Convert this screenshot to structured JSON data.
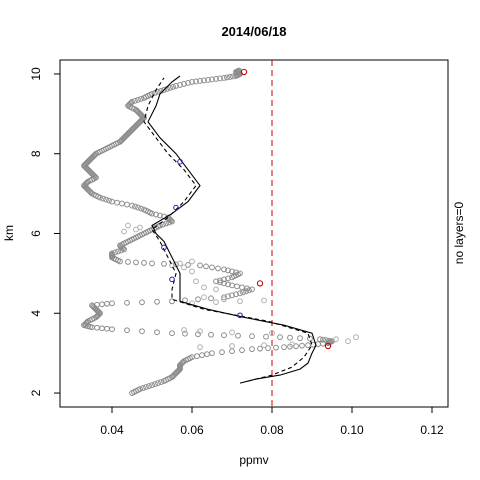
{
  "chart_data": {
    "type": "scatter",
    "title": "2014/06/18",
    "xlabel": "ppmv",
    "ylabel": "km",
    "right_label": "no layers=0",
    "xlim": [
      0.027,
      0.124
    ],
    "ylim": [
      1.65,
      10.35
    ],
    "x_ticks": [
      0.04,
      0.06,
      0.08,
      0.1,
      0.12
    ],
    "x_tick_labels": [
      "0.04",
      "0.06",
      "0.08",
      "0.10",
      "0.12"
    ],
    "y_ticks": [
      2,
      4,
      6,
      8,
      10
    ],
    "y_tick_labels": [
      "2",
      "4",
      "6",
      "8",
      "10"
    ],
    "grid": false,
    "reference_line": {
      "x": 0.08,
      "color": "#cc0000",
      "style": "dashed"
    },
    "colors": {
      "raw": "#8c8c8c",
      "smooth": "#000000",
      "blue_marker": "#2020c0",
      "red_marker": "#cc0000"
    },
    "series": [
      {
        "style": "gray-circles",
        "profile": [
          [
            2.0,
            0.045
          ],
          [
            2.1,
            0.047
          ],
          [
            2.2,
            0.05
          ],
          [
            2.3,
            0.053
          ],
          [
            2.4,
            0.055
          ],
          [
            2.5,
            0.056
          ],
          [
            2.6,
            0.057
          ],
          [
            2.7,
            0.057
          ],
          [
            2.8,
            0.058
          ],
          [
            2.9,
            0.06
          ],
          [
            3.0,
            0.065
          ],
          [
            3.1,
            0.075
          ],
          [
            3.15,
            0.083
          ],
          [
            3.2,
            0.089
          ],
          [
            3.25,
            0.094
          ],
          [
            3.3,
            0.095
          ],
          [
            3.35,
            0.092
          ],
          [
            3.4,
            0.082
          ],
          [
            3.45,
            0.068
          ],
          [
            3.5,
            0.055
          ],
          [
            3.6,
            0.04
          ],
          [
            3.65,
            0.035
          ],
          [
            3.7,
            0.033
          ],
          [
            3.8,
            0.034
          ],
          [
            3.9,
            0.036
          ],
          [
            4.0,
            0.037
          ],
          [
            4.1,
            0.036
          ],
          [
            4.2,
            0.035
          ],
          [
            4.25,
            0.04
          ],
          [
            4.3,
            0.055
          ],
          [
            4.4,
            0.068
          ],
          [
            4.5,
            0.072
          ],
          [
            4.6,
            0.075
          ],
          [
            4.7,
            0.07
          ],
          [
            4.8,
            0.066
          ],
          [
            4.9,
            0.07
          ],
          [
            5.0,
            0.072
          ],
          [
            5.1,
            0.068
          ],
          [
            5.2,
            0.062
          ],
          [
            5.25,
            0.05
          ],
          [
            5.3,
            0.042
          ],
          [
            5.4,
            0.04
          ],
          [
            5.5,
            0.04
          ],
          [
            5.6,
            0.043
          ],
          [
            5.7,
            0.042
          ],
          [
            5.8,
            0.044
          ],
          [
            5.9,
            0.046
          ],
          [
            6.0,
            0.048
          ],
          [
            6.1,
            0.05
          ],
          [
            6.2,
            0.052
          ],
          [
            6.3,
            0.055
          ],
          [
            6.4,
            0.054
          ],
          [
            6.5,
            0.05
          ],
          [
            6.6,
            0.048
          ],
          [
            6.7,
            0.045
          ],
          [
            6.8,
            0.04
          ],
          [
            6.9,
            0.037
          ],
          [
            7.0,
            0.035
          ],
          [
            7.1,
            0.034
          ],
          [
            7.2,
            0.033
          ],
          [
            7.3,
            0.034
          ],
          [
            7.4,
            0.036
          ],
          [
            7.5,
            0.035
          ],
          [
            7.6,
            0.034
          ],
          [
            7.7,
            0.033
          ],
          [
            7.8,
            0.034
          ],
          [
            7.9,
            0.035
          ],
          [
            8.0,
            0.036
          ],
          [
            8.1,
            0.038
          ],
          [
            8.2,
            0.04
          ],
          [
            8.3,
            0.042
          ],
          [
            8.4,
            0.043
          ],
          [
            8.5,
            0.044
          ],
          [
            8.6,
            0.045
          ],
          [
            8.7,
            0.046
          ],
          [
            8.8,
            0.047
          ],
          [
            8.9,
            0.048
          ],
          [
            9.0,
            0.047
          ],
          [
            9.1,
            0.046
          ],
          [
            9.2,
            0.044
          ],
          [
            9.3,
            0.045
          ],
          [
            9.4,
            0.048
          ],
          [
            9.5,
            0.05
          ],
          [
            9.6,
            0.053
          ],
          [
            9.7,
            0.056
          ],
          [
            9.8,
            0.06
          ],
          [
            9.85,
            0.064
          ],
          [
            9.9,
            0.068
          ],
          [
            9.95,
            0.071
          ],
          [
            10.0,
            0.072
          ],
          [
            10.05,
            0.071
          ],
          [
            10.1,
            0.072
          ]
        ],
        "scatter": [
          [
            3.15,
            0.062
          ],
          [
            3.18,
            0.07
          ],
          [
            3.2,
            0.078
          ],
          [
            3.22,
            0.085
          ],
          [
            3.3,
            0.099
          ],
          [
            3.35,
            0.096
          ],
          [
            3.4,
            0.101
          ],
          [
            3.5,
            0.08
          ],
          [
            3.52,
            0.07
          ],
          [
            3.55,
            0.062
          ],
          [
            3.58,
            0.058
          ],
          [
            4.25,
            0.06
          ],
          [
            4.28,
            0.066
          ],
          [
            4.3,
            0.072
          ],
          [
            4.32,
            0.078
          ],
          [
            4.35,
            0.068
          ],
          [
            4.4,
            0.063
          ],
          [
            4.6,
            0.066
          ],
          [
            4.65,
            0.063
          ],
          [
            4.8,
            0.061
          ],
          [
            5.05,
            0.06
          ],
          [
            5.15,
            0.058
          ],
          [
            5.2,
            0.055
          ],
          [
            5.25,
            0.057
          ],
          [
            5.3,
            0.06
          ],
          [
            6.05,
            0.043
          ],
          [
            6.1,
            0.046
          ],
          [
            6.15,
            0.047
          ],
          [
            6.2,
            0.044
          ]
        ]
      },
      {
        "style": "black-solid",
        "points": [
          [
            2.25,
            0.072
          ],
          [
            2.35,
            0.076
          ],
          [
            2.45,
            0.082
          ],
          [
            2.6,
            0.087
          ],
          [
            2.75,
            0.089
          ],
          [
            3.0,
            0.09
          ],
          [
            3.2,
            0.091
          ],
          [
            3.5,
            0.09
          ],
          [
            3.7,
            0.083
          ],
          [
            3.9,
            0.073
          ],
          [
            4.1,
            0.064
          ],
          [
            4.3,
            0.057
          ],
          [
            4.6,
            0.057
          ],
          [
            5.0,
            0.057
          ],
          [
            5.4,
            0.055
          ],
          [
            5.8,
            0.053
          ],
          [
            6.0,
            0.051
          ],
          [
            6.2,
            0.05
          ],
          [
            6.5,
            0.055
          ],
          [
            6.8,
            0.059
          ],
          [
            7.2,
            0.062
          ],
          [
            7.6,
            0.059
          ],
          [
            8.0,
            0.056
          ],
          [
            8.4,
            0.052
          ],
          [
            8.8,
            0.049
          ],
          [
            9.2,
            0.051
          ],
          [
            9.5,
            0.052
          ],
          [
            9.8,
            0.055
          ],
          [
            9.95,
            0.057
          ]
        ]
      },
      {
        "style": "black-dashed",
        "points": [
          [
            2.3,
            0.074
          ],
          [
            2.45,
            0.08
          ],
          [
            2.65,
            0.085
          ],
          [
            2.9,
            0.088
          ],
          [
            3.2,
            0.09
          ],
          [
            3.5,
            0.089
          ],
          [
            3.8,
            0.079
          ],
          [
            4.1,
            0.063
          ],
          [
            4.35,
            0.055
          ],
          [
            4.6,
            0.055
          ],
          [
            5.0,
            0.056
          ],
          [
            5.4,
            0.054
          ],
          [
            5.8,
            0.052
          ],
          [
            6.1,
            0.05
          ],
          [
            6.4,
            0.054
          ],
          [
            6.8,
            0.058
          ],
          [
            7.2,
            0.061
          ],
          [
            7.6,
            0.058
          ],
          [
            8.0,
            0.054
          ],
          [
            8.4,
            0.051
          ],
          [
            8.8,
            0.048
          ],
          [
            9.2,
            0.049
          ],
          [
            9.6,
            0.051
          ],
          [
            9.9,
            0.053
          ]
        ]
      },
      {
        "style": "blue-circles",
        "points": [
          [
            3.95,
            0.072
          ],
          [
            4.85,
            0.055
          ],
          [
            5.65,
            0.053
          ],
          [
            6.65,
            0.056
          ],
          [
            7.8,
            0.057
          ]
        ]
      },
      {
        "style": "red-circles",
        "points": [
          [
            3.18,
            0.094
          ],
          [
            4.75,
            0.077
          ],
          [
            10.05,
            0.073
          ]
        ]
      }
    ]
  }
}
